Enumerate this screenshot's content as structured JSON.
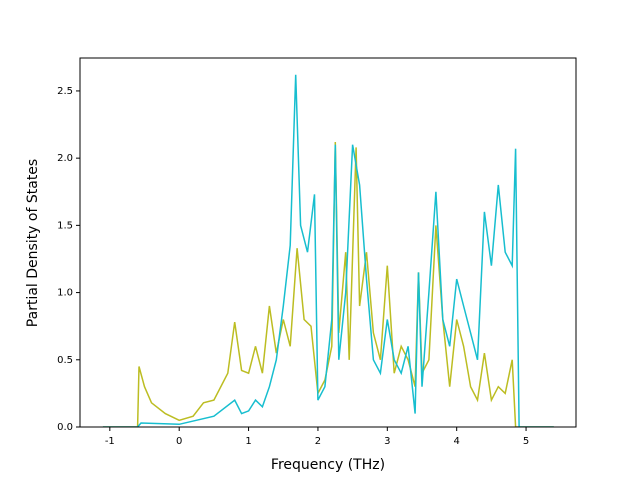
{
  "chart_data": {
    "type": "line",
    "xlabel": "Frequency (THz)",
    "ylabel": "Partial Density of States",
    "xlim": [
      -1.43,
      5.72
    ],
    "ylim": [
      0,
      2.745
    ],
    "xticks": [
      -1,
      0,
      1,
      2,
      3,
      4,
      5
    ],
    "yticks": [
      {
        "value": 0,
        "label": "0.0"
      },
      0.5,
      {
        "value": 1,
        "label": "1.0"
      },
      1.5,
      {
        "value": 2,
        "label": "2.0"
      },
      2.5
    ],
    "series": [
      {
        "color": "#bcbd22",
        "x": [
          -1.1,
          -0.6,
          -0.58,
          -0.5,
          -0.4,
          -0.2,
          0,
          0.2,
          0.35,
          0.5,
          0.7,
          0.8,
          0.9,
          1.0,
          1.1,
          1.2,
          1.3,
          1.4,
          1.5,
          1.6,
          1.7,
          1.8,
          1.9,
          2.0,
          2.1,
          2.2,
          2.25,
          2.3,
          2.4,
          2.45,
          2.55,
          2.6,
          2.7,
          2.8,
          2.9,
          3.0,
          3.1,
          3.2,
          3.3,
          3.4,
          3.45,
          3.5,
          3.6,
          3.7,
          3.8,
          3.9,
          4.0,
          4.1,
          4.2,
          4.3,
          4.4,
          4.5,
          4.6,
          4.7,
          4.8,
          4.85,
          5.4
        ],
        "values": [
          0,
          0,
          0.45,
          0.3,
          0.18,
          0.1,
          0.05,
          0.08,
          0.18,
          0.2,
          0.4,
          0.78,
          0.42,
          0.4,
          0.6,
          0.4,
          0.9,
          0.55,
          0.8,
          0.6,
          1.33,
          0.8,
          0.75,
          0.25,
          0.35,
          0.6,
          2.12,
          0.7,
          1.3,
          0.5,
          2.08,
          0.9,
          1.3,
          0.7,
          0.5,
          1.2,
          0.4,
          0.6,
          0.5,
          0.3,
          1.15,
          0.4,
          0.5,
          1.5,
          0.8,
          0.3,
          0.8,
          0.6,
          0.3,
          0.2,
          0.55,
          0.2,
          0.3,
          0.25,
          0.5,
          0,
          0
        ]
      },
      {
        "color": "#17becf",
        "x": [
          -1.1,
          -0.6,
          -0.55,
          0,
          0.5,
          0.8,
          0.9,
          1.0,
          1.1,
          1.2,
          1.3,
          1.4,
          1.5,
          1.6,
          1.68,
          1.75,
          1.85,
          1.95,
          2.0,
          2.1,
          2.2,
          2.25,
          2.3,
          2.4,
          2.5,
          2.6,
          2.7,
          2.8,
          2.9,
          3.0,
          3.1,
          3.2,
          3.3,
          3.4,
          3.45,
          3.5,
          3.6,
          3.7,
          3.8,
          3.9,
          4.0,
          4.1,
          4.2,
          4.3,
          4.4,
          4.5,
          4.6,
          4.7,
          4.8,
          4.85,
          4.9,
          5.4
        ],
        "values": [
          0,
          0,
          0.03,
          0.02,
          0.08,
          0.2,
          0.1,
          0.12,
          0.2,
          0.15,
          0.3,
          0.5,
          0.9,
          1.35,
          2.62,
          1.5,
          1.3,
          1.73,
          0.2,
          0.3,
          0.8,
          2.1,
          0.5,
          1.0,
          2.1,
          1.8,
          1.1,
          0.5,
          0.4,
          0.8,
          0.5,
          0.4,
          0.6,
          0.1,
          1.15,
          0.3,
          1.0,
          1.75,
          0.8,
          0.6,
          1.1,
          0.9,
          0.7,
          0.5,
          1.6,
          1.2,
          1.8,
          1.3,
          1.2,
          2.07,
          0,
          0
        ]
      }
    ]
  }
}
